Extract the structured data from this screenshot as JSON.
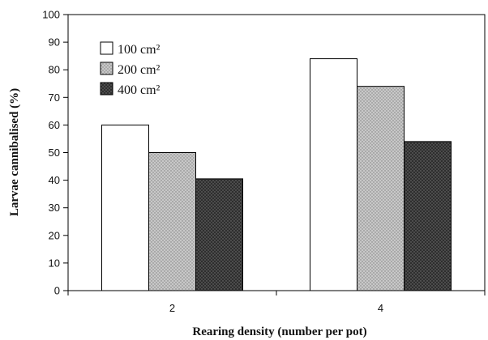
{
  "chart_data": {
    "type": "bar",
    "categories": [
      "2",
      "4"
    ],
    "series": [
      {
        "name": "100 cm²",
        "values": [
          60,
          84
        ],
        "fill": "#ffffff",
        "pattern": "none"
      },
      {
        "name": "200 cm²",
        "values": [
          50,
          74
        ],
        "fill": "#c8c8c8",
        "pattern": "light-stipple"
      },
      {
        "name": "400 cm²",
        "values": [
          40.5,
          54
        ],
        "fill": "#3a3a3a",
        "pattern": "dark-stipple"
      }
    ],
    "xlabel": "Rearing density (number per pot)",
    "ylabel": "Larvae cannibalised (%)",
    "ylim": [
      0,
      100
    ],
    "yticks": [
      0,
      10,
      20,
      30,
      40,
      50,
      60,
      70,
      80,
      90,
      100
    ],
    "grid": false,
    "legend_position": "top-left"
  }
}
